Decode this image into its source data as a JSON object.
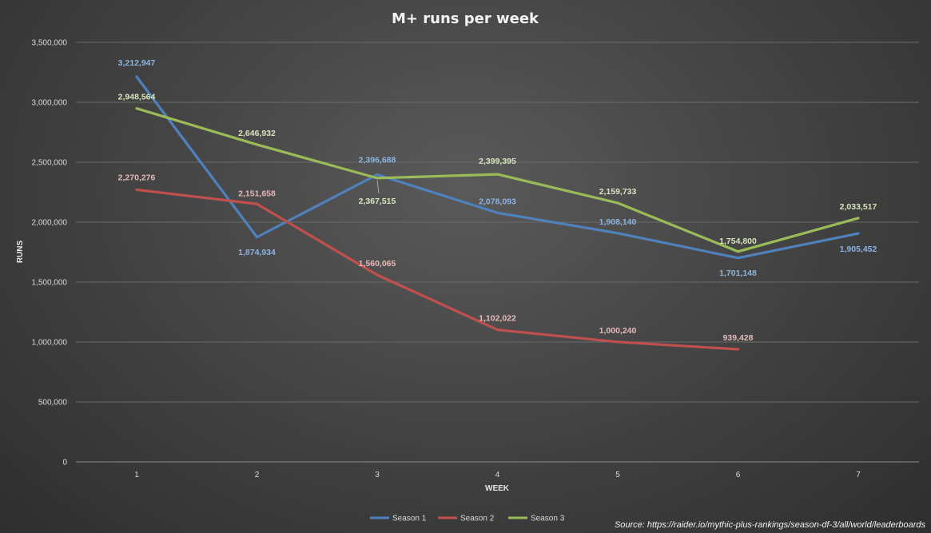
{
  "chart_data": {
    "type": "line",
    "title": "M+ runs  per week",
    "xlabel": "WEEK",
    "ylabel": "RUNS",
    "categories": [
      "1",
      "2",
      "3",
      "4",
      "5",
      "6",
      "7"
    ],
    "ylim": [
      0,
      3500000
    ],
    "yticks": [
      0,
      500000,
      1000000,
      1500000,
      2000000,
      2500000,
      3000000,
      3500000
    ],
    "ytick_labels": [
      "0",
      "500,000",
      "1,000,000",
      "1,500,000",
      "2,000,000",
      "2,500,000",
      "3,000,000",
      "3,500,000"
    ],
    "grid": true,
    "legend_position": "bottom",
    "series": [
      {
        "name": "Season 1",
        "color": "#4f81bd",
        "label_color": "#8db3e2",
        "values": [
          3212947,
          1874934,
          2396688,
          2078093,
          1908140,
          1701148,
          1905452
        ],
        "labels": [
          "3,212,947",
          "1,874,934",
          "2,396,688",
          "2,078,093",
          "1,908,140",
          "1,701,148",
          "1,905,452"
        ]
      },
      {
        "name": "Season 2",
        "color": "#c0504d",
        "label_color": "#e6b9b8",
        "values": [
          2270276,
          2151658,
          1560065,
          1102022,
          1000240,
          939428,
          null
        ],
        "labels": [
          "2,270,276",
          "2,151,658",
          "1,560,065",
          "1,102,022",
          "1,000,240",
          "939,428",
          null
        ]
      },
      {
        "name": "Season 3",
        "color": "#9bbb59",
        "label_color": "#d7e4bd",
        "values": [
          2948564,
          2646932,
          2367515,
          2399395,
          2159733,
          1754800,
          2033517
        ],
        "labels": [
          "2,948,564",
          "2,646,932",
          "2,367,515",
          "2,399,395",
          "2,159,733",
          "1,754,800",
          "2,033,517"
        ]
      }
    ],
    "source": "Source: https://raider.io/mythic-plus-rankings/season-df-3/all/world/leaderboards"
  }
}
